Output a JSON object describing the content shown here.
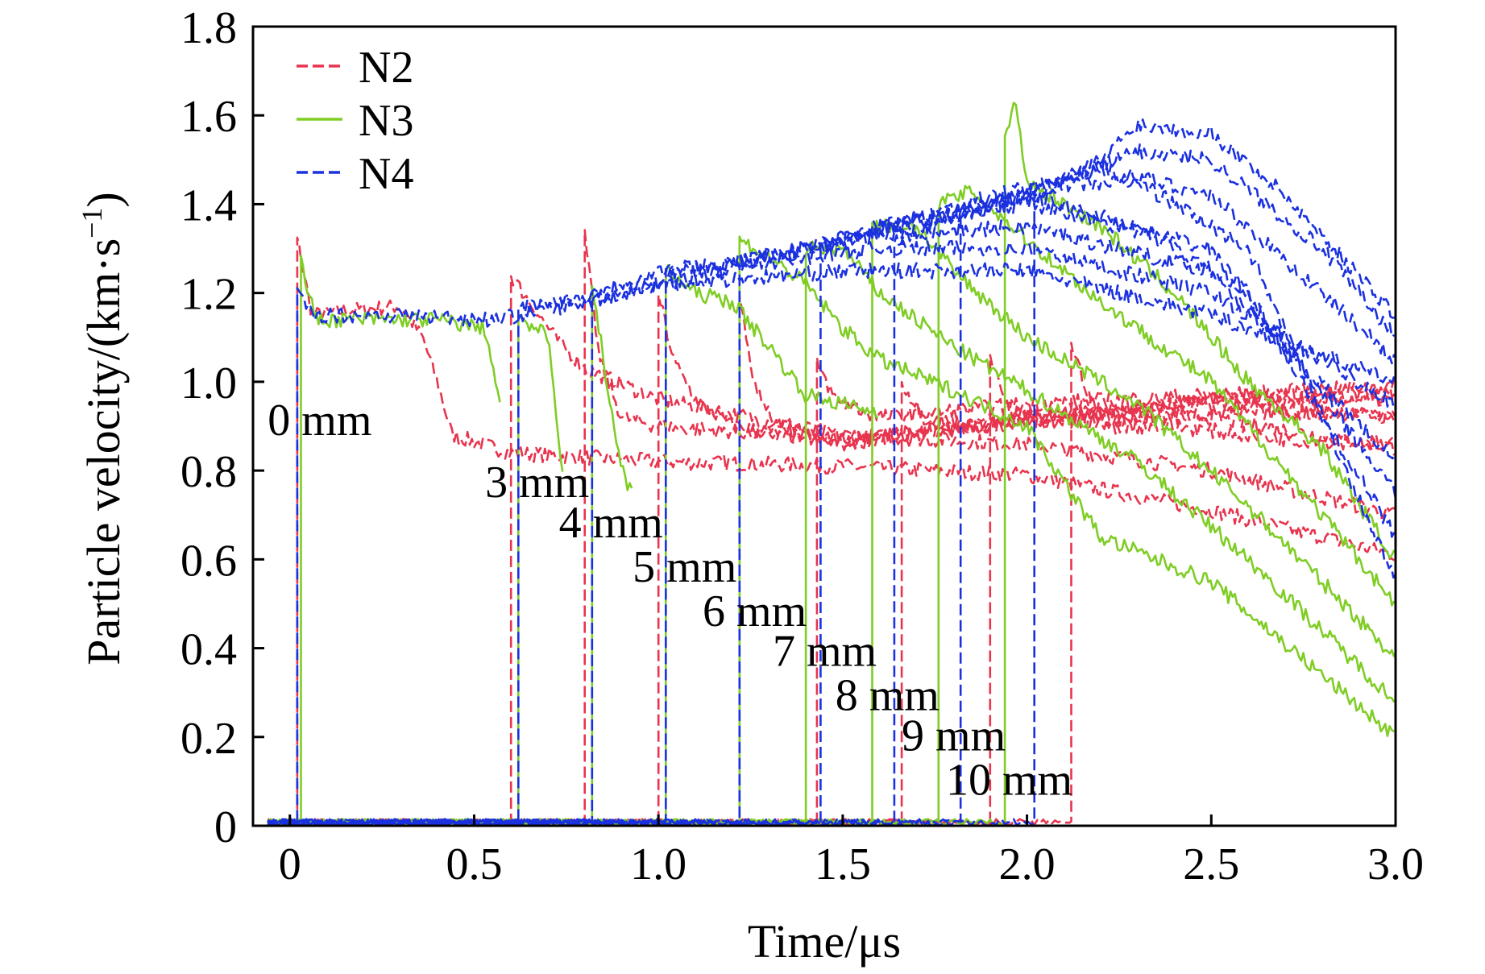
{
  "chart_data": {
    "type": "line",
    "title": "",
    "xlabel": "Time/μs",
    "ylabel_main": "Particle velocity/(km·s",
    "ylabel_sup": "−1",
    "ylabel_close": ")",
    "xlim": [
      -0.1,
      3.0
    ],
    "ylim": [
      0,
      1.8
    ],
    "xticks": [
      0,
      0.5,
      1.0,
      1.5,
      2.0,
      2.5,
      3.0
    ],
    "xtick_labels": [
      "0",
      "0.5",
      "1.0",
      "1.5",
      "2.0",
      "2.5",
      "3.0"
    ],
    "yticks": [
      0,
      0.2,
      0.4,
      0.6,
      0.8,
      1.0,
      1.2,
      1.4,
      1.6,
      1.8
    ],
    "ytick_labels": [
      "0",
      "0.2",
      "0.4",
      "0.6",
      "0.8",
      "1.0",
      "1.2",
      "1.4",
      "1.6",
      "1.8"
    ],
    "legend_position": "top-left",
    "grid": false,
    "series": [
      {
        "name": "N2",
        "color": "#e8344e",
        "dash": true,
        "gauges": [
          {
            "arrival": 0.02,
            "points": [
              [
                0.02,
                1.32
              ],
              [
                0.06,
                1.15
              ],
              [
                0.15,
                1.16
              ],
              [
                0.3,
                1.17
              ],
              [
                0.36,
                1.1
              ],
              [
                0.4,
                1.0
              ],
              [
                0.44,
                0.88
              ],
              [
                0.6,
                0.84
              ],
              [
                1.0,
                0.82
              ],
              [
                1.5,
                0.81
              ],
              [
                2.0,
                0.79
              ],
              [
                2.5,
                0.71
              ],
              [
                3.0,
                0.61
              ]
            ]
          },
          {
            "arrival": 0.6,
            "points": [
              [
                0.6,
                1.24
              ],
              [
                0.65,
                1.18
              ],
              [
                0.72,
                1.1
              ],
              [
                0.8,
                1.03
              ],
              [
                1.0,
                0.96
              ],
              [
                1.5,
                0.88
              ],
              [
                2.0,
                0.86
              ],
              [
                2.5,
                0.8
              ],
              [
                3.0,
                0.7
              ]
            ]
          },
          {
            "arrival": 0.8,
            "points": [
              [
                0.8,
                1.33
              ],
              [
                0.84,
                1.05
              ],
              [
                0.9,
                0.92
              ],
              [
                1.0,
                0.9
              ],
              [
                1.5,
                0.87
              ],
              [
                2.0,
                0.91
              ],
              [
                2.5,
                0.92
              ],
              [
                3.0,
                0.85
              ]
            ]
          },
          {
            "arrival": 1.0,
            "points": [
              [
                1.0,
                1.2
              ],
              [
                1.04,
                1.05
              ],
              [
                1.1,
                0.96
              ],
              [
                1.2,
                0.9
              ],
              [
                1.5,
                0.86
              ],
              [
                2.0,
                0.92
              ],
              [
                2.5,
                0.95
              ],
              [
                3.0,
                0.92
              ]
            ]
          },
          {
            "arrival": 1.22,
            "points": [
              [
                1.22,
                1.18
              ],
              [
                1.26,
                1.0
              ],
              [
                1.32,
                0.9
              ],
              [
                1.5,
                0.87
              ],
              [
                2.0,
                0.91
              ],
              [
                2.5,
                0.96
              ],
              [
                3.0,
                0.96
              ]
            ]
          },
          {
            "arrival": 1.43,
            "points": [
              [
                1.43,
                1.04
              ],
              [
                1.48,
                0.96
              ],
              [
                1.6,
                0.92
              ],
              [
                2.0,
                0.95
              ],
              [
                2.5,
                0.97
              ],
              [
                3.0,
                0.99
              ]
            ]
          },
          {
            "arrival": 1.66,
            "points": [
              [
                1.66,
                1.0
              ],
              [
                1.72,
                0.92
              ],
              [
                1.85,
                0.9
              ],
              [
                2.0,
                0.92
              ],
              [
                2.5,
                0.96
              ],
              [
                3.0,
                0.97
              ]
            ]
          },
          {
            "arrival": 1.9,
            "points": [
              [
                1.9,
                1.06
              ],
              [
                1.96,
                0.93
              ],
              [
                2.1,
                0.91
              ],
              [
                2.5,
                0.93
              ],
              [
                3.0,
                0.93
              ]
            ]
          },
          {
            "arrival": 2.12,
            "points": [
              [
                2.12,
                1.08
              ],
              [
                2.2,
                0.9
              ],
              [
                2.4,
                0.9
              ],
              [
                2.7,
                0.87
              ],
              [
                3.0,
                0.86
              ]
            ]
          }
        ]
      },
      {
        "name": "N3",
        "color": "#7fcd25",
        "dash": false,
        "gauges": [
          {
            "arrival": 0.03,
            "points": [
              [
                0.03,
                1.27
              ],
              [
                0.07,
                1.14
              ],
              [
                0.2,
                1.14
              ],
              [
                0.4,
                1.14
              ],
              [
                0.53,
                1.12
              ],
              [
                0.57,
                0.95
              ]
            ]
          },
          {
            "arrival": 0.62,
            "points": [
              [
                0.62,
                1.15
              ],
              [
                0.7,
                1.1
              ],
              [
                0.74,
                0.8
              ]
            ]
          },
          {
            "arrival": 0.82,
            "points": [
              [
                0.82,
                1.22
              ],
              [
                0.86,
                1.0
              ],
              [
                0.9,
                0.8
              ],
              [
                0.93,
                0.75
              ]
            ]
          },
          {
            "arrival": 1.02,
            "points": [
              [
                1.02,
                1.25
              ],
              [
                1.1,
                1.2
              ],
              [
                1.2,
                1.18
              ],
              [
                1.3,
                1.08
              ],
              [
                1.4,
                0.97
              ],
              [
                1.5,
                0.95
              ],
              [
                1.6,
                0.93
              ]
            ]
          },
          {
            "arrival": 1.22,
            "points": [
              [
                1.22,
                1.32
              ],
              [
                1.3,
                1.28
              ],
              [
                1.4,
                1.22
              ],
              [
                1.5,
                1.12
              ],
              [
                1.6,
                1.05
              ],
              [
                1.8,
                0.98
              ],
              [
                2.0,
                0.9
              ],
              [
                2.2,
                0.65
              ],
              [
                2.5,
                0.55
              ],
              [
                3.0,
                0.2
              ]
            ]
          },
          {
            "arrival": 1.4,
            "points": [
              [
                1.4,
                1.3
              ],
              [
                1.5,
                1.3
              ],
              [
                1.6,
                1.2
              ],
              [
                1.8,
                1.08
              ],
              [
                2.0,
                0.98
              ],
              [
                2.3,
                0.82
              ],
              [
                2.6,
                0.6
              ],
              [
                3.0,
                0.28
              ]
            ]
          },
          {
            "arrival": 1.58,
            "points": [
              [
                1.58,
                1.35
              ],
              [
                1.7,
                1.35
              ],
              [
                1.8,
                1.25
              ],
              [
                2.0,
                1.1
              ],
              [
                2.3,
                0.95
              ],
              [
                2.6,
                0.72
              ],
              [
                3.0,
                0.38
              ]
            ]
          },
          {
            "arrival": 1.76,
            "points": [
              [
                1.76,
                1.4
              ],
              [
                1.85,
                1.43
              ],
              [
                2.0,
                1.32
              ],
              [
                2.2,
                1.18
              ],
              [
                2.5,
                1.0
              ],
              [
                2.8,
                0.7
              ],
              [
                3.0,
                0.5
              ]
            ]
          },
          {
            "arrival": 1.94,
            "points": [
              [
                1.94,
                1.55
              ],
              [
                1.97,
                1.63
              ],
              [
                2.0,
                1.45
              ],
              [
                2.2,
                1.35
              ],
              [
                2.4,
                1.2
              ],
              [
                2.6,
                1.0
              ],
              [
                2.8,
                0.85
              ],
              [
                3.0,
                0.6
              ]
            ]
          }
        ]
      },
      {
        "name": "N4",
        "color": "#1b31e0",
        "dash": true,
        "gauges": [
          {
            "arrival": 0.02,
            "points": [
              [
                0.02,
                1.2
              ],
              [
                0.06,
                1.15
              ],
              [
                0.3,
                1.15
              ],
              [
                0.55,
                1.14
              ],
              [
                0.62,
                1.15
              ],
              [
                0.8,
                1.18
              ],
              [
                1.0,
                1.22
              ],
              [
                1.2,
                1.23
              ],
              [
                1.5,
                1.25
              ],
              [
                2.0,
                1.25
              ],
              [
                2.5,
                1.15
              ],
              [
                3.0,
                1.0
              ]
            ]
          },
          {
            "arrival": 0.62,
            "points": [
              [
                0.62,
                1.17
              ],
              [
                0.8,
                1.18
              ],
              [
                1.0,
                1.22
              ],
              [
                1.3,
                1.27
              ],
              [
                1.6,
                1.3
              ],
              [
                2.0,
                1.3
              ],
              [
                2.5,
                1.2
              ],
              [
                3.0,
                0.95
              ]
            ]
          },
          {
            "arrival": 0.82,
            "points": [
              [
                0.82,
                1.2
              ],
              [
                1.0,
                1.25
              ],
              [
                1.3,
                1.28
              ],
              [
                1.6,
                1.33
              ],
              [
                2.0,
                1.35
              ],
              [
                2.5,
                1.25
              ],
              [
                3.0,
                0.82
              ]
            ]
          },
          {
            "arrival": 1.02,
            "points": [
              [
                1.02,
                1.24
              ],
              [
                1.3,
                1.28
              ],
              [
                1.6,
                1.35
              ],
              [
                2.0,
                1.4
              ],
              [
                2.5,
                1.3
              ],
              [
                3.0,
                0.75
              ]
            ]
          },
          {
            "arrival": 1.22,
            "points": [
              [
                1.22,
                1.27
              ],
              [
                1.4,
                1.3
              ],
              [
                1.7,
                1.36
              ],
              [
                2.0,
                1.42
              ],
              [
                2.3,
                1.35
              ],
              [
                2.6,
                1.2
              ],
              [
                3.0,
                0.65
              ]
            ]
          },
          {
            "arrival": 1.44,
            "points": [
              [
                1.44,
                1.3
              ],
              [
                1.7,
                1.37
              ],
              [
                2.0,
                1.44
              ],
              [
                2.3,
                1.45
              ],
              [
                2.6,
                1.3
              ],
              [
                3.0,
                0.55
              ]
            ]
          },
          {
            "arrival": 1.64,
            "points": [
              [
                1.64,
                1.32
              ],
              [
                1.9,
                1.4
              ],
              [
                2.2,
                1.48
              ],
              [
                2.5,
                1.42
              ],
              [
                2.8,
                1.2
              ],
              [
                3.0,
                1.05
              ]
            ]
          },
          {
            "arrival": 1.82,
            "points": [
              [
                1.82,
                1.38
              ],
              [
                2.0,
                1.42
              ],
              [
                2.3,
                1.52
              ],
              [
                2.5,
                1.5
              ],
              [
                2.8,
                1.3
              ],
              [
                3.0,
                1.1
              ]
            ]
          },
          {
            "arrival": 2.02,
            "points": [
              [
                2.02,
                1.42
              ],
              [
                2.2,
                1.5
              ],
              [
                2.3,
                1.58
              ],
              [
                2.5,
                1.56
              ],
              [
                2.7,
                1.42
              ],
              [
                3.0,
                1.15
              ]
            ]
          }
        ]
      }
    ],
    "annotations": [
      {
        "text": "0 mm",
        "x": -0.06,
        "y": 0.88
      },
      {
        "text": "3 mm",
        "x": 0.53,
        "y": 0.74
      },
      {
        "text": "4 mm",
        "x": 0.73,
        "y": 0.65
      },
      {
        "text": "5 mm",
        "x": 0.93,
        "y": 0.55
      },
      {
        "text": "6 mm",
        "x": 1.12,
        "y": 0.45
      },
      {
        "text": "7 mm",
        "x": 1.31,
        "y": 0.36
      },
      {
        "text": "8 mm",
        "x": 1.48,
        "y": 0.26
      },
      {
        "text": "9 mm",
        "x": 1.66,
        "y": 0.17
      },
      {
        "text": "10 mm",
        "x": 1.78,
        "y": 0.07
      }
    ]
  }
}
